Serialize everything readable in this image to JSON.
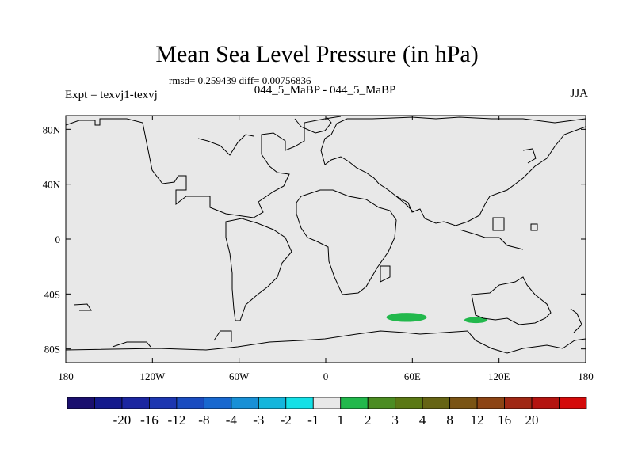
{
  "title": "Mean Sea Level Pressure (in hPa)",
  "stats_line": "rmsd= 0.259439 diff= 0.00756836",
  "subtitle": "044_5_MaBP - 044_5_MaBP",
  "left_label": "Expt = texvj1-texvj",
  "right_label": "JJA",
  "map": {
    "background_color": "#e8e8e8",
    "lon_range": [
      -180,
      180
    ],
    "lat_range": [
      -90,
      90
    ],
    "lat_ticks": [
      {
        "value": 80,
        "label": "80N"
      },
      {
        "value": 40,
        "label": "40N"
      },
      {
        "value": 0,
        "label": "0"
      },
      {
        "value": -40,
        "label": "40S"
      },
      {
        "value": -80,
        "label": "80S"
      }
    ],
    "lon_ticks": [
      {
        "value": -180,
        "label": "180"
      },
      {
        "value": -120,
        "label": "120W"
      },
      {
        "value": -60,
        "label": "60W"
      },
      {
        "value": 0,
        "label": "0"
      },
      {
        "value": 60,
        "label": "60E"
      },
      {
        "value": 120,
        "label": "120E"
      },
      {
        "value": 180,
        "label": "180"
      }
    ],
    "anomaly_regions": [
      {
        "lon": 56,
        "lat": -57,
        "lon_radius": 14,
        "lat_radius": 3.3,
        "color": "#22b84c"
      },
      {
        "lon": 104,
        "lat": -59,
        "lon_radius": 8,
        "lat_radius": 2.2,
        "color": "#22b84c"
      }
    ]
  },
  "colorbar": {
    "colors": [
      "#1a0f6e",
      "#141a8c",
      "#1b26a0",
      "#1c36b0",
      "#1a4cc0",
      "#1868cf",
      "#1890d6",
      "#14b6dc",
      "#14e0e6",
      "#e8e8e8",
      "#22b84c",
      "#4b8c22",
      "#5a7814",
      "#666414",
      "#7a5414",
      "#8c4414",
      "#a02814",
      "#b41410",
      "#d40a0a"
    ],
    "labels": [
      "-20",
      "-16",
      "-12",
      "-8",
      "-4",
      "-3",
      "-2",
      "-1",
      "1",
      "2",
      "3",
      "4",
      "8",
      "12",
      "16",
      "20"
    ]
  }
}
